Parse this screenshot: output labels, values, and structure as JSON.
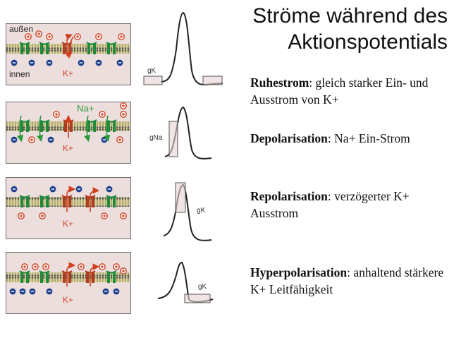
{
  "title": {
    "line1": "Ströme während des",
    "line2": "Aktionspotentials"
  },
  "labels": {
    "outside": "außen",
    "inside": "innen",
    "k_ion": "K+",
    "na_ion": "Na+",
    "g_k": "gK",
    "g_na": "gNa"
  },
  "colors": {
    "panel_bg": "#ecdedd",
    "channel_green": "#1f8a3c",
    "channel_red": "#b23a1f",
    "ion_red": "#d04020",
    "ion_blue": "#1d3f8f",
    "membrane": "#b9a455"
  },
  "phases": [
    {
      "term": "Ruhestrom",
      "text": ": gleich starker Ein- und Ausstrom von K+",
      "conductance": "gK"
    },
    {
      "term": "Depolarisation",
      "text": ": Na+ Ein-Strom",
      "conductance": "gNa"
    },
    {
      "term": "Repolarisation",
      "text": ": verzögerter K+ Ausstrom",
      "conductance": "gK"
    },
    {
      "term": "Hyperpolarisation",
      "text": ": anhaltend stärkere K+ Leitfähigkeit",
      "conductance": "gK"
    }
  ]
}
